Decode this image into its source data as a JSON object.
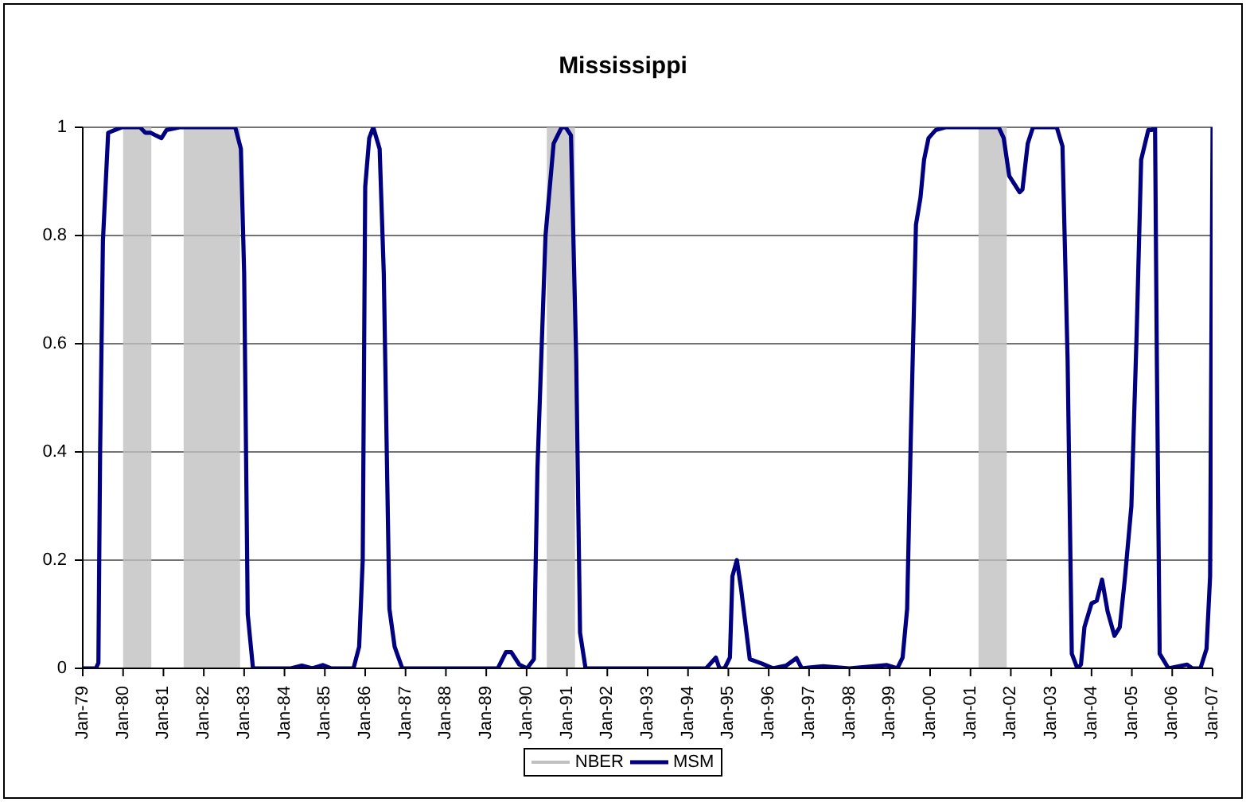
{
  "chart_data": {
    "type": "line",
    "title": "Mississippi",
    "xlim": [
      "1979-01",
      "2007-01"
    ],
    "xticks": [
      {
        "value": "1979-01",
        "label": "Jan-79"
      },
      {
        "value": "1980-01",
        "label": "Jan-80"
      },
      {
        "value": "1981-01",
        "label": "Jan-81"
      },
      {
        "value": "1982-01",
        "label": "Jan-82"
      },
      {
        "value": "1983-01",
        "label": "Jan-83"
      },
      {
        "value": "1984-01",
        "label": "Jan-84"
      },
      {
        "value": "1985-01",
        "label": "Jan-85"
      },
      {
        "value": "1986-01",
        "label": "Jan-86"
      },
      {
        "value": "1987-01",
        "label": "Jan-87"
      },
      {
        "value": "1988-01",
        "label": "Jan-88"
      },
      {
        "value": "1989-01",
        "label": "Jan-89"
      },
      {
        "value": "1990-01",
        "label": "Jan-90"
      },
      {
        "value": "1991-01",
        "label": "Jan-91"
      },
      {
        "value": "1992-01",
        "label": "Jan-92"
      },
      {
        "value": "1993-01",
        "label": "Jan-93"
      },
      {
        "value": "1994-01",
        "label": "Jan-94"
      },
      {
        "value": "1995-01",
        "label": "Jan-95"
      },
      {
        "value": "1996-01",
        "label": "Jan-96"
      },
      {
        "value": "1997-01",
        "label": "Jan-97"
      },
      {
        "value": "1998-01",
        "label": "Jan-98"
      },
      {
        "value": "1999-01",
        "label": "Jan-99"
      },
      {
        "value": "2000-01",
        "label": "Jan-00"
      },
      {
        "value": "2001-01",
        "label": "Jan-01"
      },
      {
        "value": "2002-01",
        "label": "Jan-02"
      },
      {
        "value": "2003-01",
        "label": "Jan-03"
      },
      {
        "value": "2004-01",
        "label": "Jan-04"
      },
      {
        "value": "2005-01",
        "label": "Jan-05"
      },
      {
        "value": "2006-01",
        "label": "Jan-06"
      },
      {
        "value": "2007-01",
        "label": "Jan-07"
      }
    ],
    "ylim": [
      0,
      1
    ],
    "yticks": [
      0,
      0.2,
      0.4,
      0.6,
      0.8,
      1
    ],
    "grid": "y",
    "legend": "bottom",
    "marker": "none",
    "bands": [
      {
        "axis": "x",
        "from": "1980-01-01",
        "to": "1980-09-13",
        "color": "#c0c0c0",
        "label": "NBER"
      },
      {
        "axis": "x",
        "from": "1981-07-01",
        "to": "1982-11-25",
        "color": "#c0c0c0"
      },
      {
        "axis": "x",
        "from": "1990-07-01",
        "to": "1991-03-13",
        "color": "#c0c0c0"
      },
      {
        "axis": "x",
        "from": "2001-03-13",
        "to": "2001-11-25",
        "color": "#c0c0c0"
      }
    ],
    "series": [
      {
        "name": "MSM",
        "color": "#000080",
        "x": [
          "1979-01-01",
          "1979-04-29",
          "1979-05-21",
          "1979-06-06",
          "1979-07-01",
          "1979-08-18",
          "1979-12-17",
          "1980-06-02",
          "1980-07-19",
          "1980-09-06",
          "1980-10-23",
          "1980-12-13",
          "1981-01-29",
          "1981-05-25",
          "1982-10-12",
          "1982-12-02",
          "1983-01-01",
          "1983-02-03",
          "1983-03-20",
          "1984-02-28",
          "1984-06-06",
          "1984-09-09",
          "1984-12-13",
          "1985-02-25",
          "1985-09-17",
          "1985-11-07",
          "1985-12-09",
          "1986-01-01",
          "1986-02-07",
          "1986-03-13",
          "1986-05-10",
          "1986-06-17",
          "1986-08-07",
          "1986-09-24",
          "1986-12-02",
          "1988-10-28",
          "1989-04-15",
          "1989-06-27",
          "1989-08-14",
          "1989-10-26",
          "1990-01-05",
          "1990-03-06",
          "1990-04-08",
          "1990-06-20",
          "1990-09-02",
          "1990-11-14",
          "1990-12-20",
          "1991-02-07",
          "1991-03-24",
          "1991-04-28",
          "1991-06-17",
          "1993-01-01",
          "1994-06-13",
          "1994-09-09",
          "1994-10-12",
          "1994-11-28",
          "1995-01-15",
          "1995-02-07",
          "1995-03-17",
          "1995-04-23",
          "1995-07-12",
          "1995-10-28",
          "1996-02-07",
          "1996-06-06",
          "1996-09-09",
          "1996-10-26",
          "1997-05-07",
          "1998-01-01",
          "1998-12-06",
          "1999-03-09",
          "1999-04-26",
          "1999-06-06",
          "1999-07-08",
          "1999-08-25",
          "1999-10-05",
          "1999-11-07",
          "1999-12-17",
          "2000-02-21",
          "2000-05-18",
          "2001-09-13",
          "2001-10-28",
          "2001-12-17",
          "2002-03-20",
          "2002-04-15",
          "2002-06-02",
          "2002-07-19",
          "2003-02-21",
          "2003-04-12",
          "2003-05-28",
          "2003-07-05",
          "2003-08-25",
          "2003-09-27",
          "2003-10-28",
          "2004-01-01",
          "2004-02-18",
          "2004-04-05",
          "2004-05-25",
          "2004-07-26",
          "2004-09-13",
          "2004-10-28",
          "2004-12-27",
          "2005-02-14",
          "2005-03-24",
          "2005-05-28",
          "2005-06-27",
          "2005-07-28",
          "2005-08-14",
          "2005-09-09",
          "2005-11-28",
          "2006-05-14",
          "2006-07-01",
          "2006-09-13",
          "2006-11-07",
          "2006-12-09",
          "2007-01-01"
        ],
        "values": [
          0,
          0,
          0.01,
          0.4,
          0.79,
          0.99,
          1,
          1,
          0.99,
          0.99,
          0.985,
          0.98,
          0.995,
          1,
          1,
          0.96,
          0.73,
          0.1,
          0,
          0,
          0.005,
          0,
          0.006,
          0,
          0,
          0.04,
          0.2,
          0.89,
          0.98,
          1,
          0.96,
          0.73,
          0.11,
          0.04,
          0,
          0,
          0,
          0.03,
          0.03,
          0.007,
          0,
          0.017,
          0.37,
          0.8,
          0.97,
          1,
          1,
          0.985,
          0.57,
          0.066,
          0,
          0,
          0,
          0.02,
          0,
          0,
          0.02,
          0.17,
          0.2,
          0.15,
          0.017,
          0.009,
          0,
          0.005,
          0.019,
          0,
          0.004,
          0,
          0.006,
          0,
          0.02,
          0.11,
          0.42,
          0.82,
          0.87,
          0.94,
          0.98,
          0.995,
          1,
          1,
          0.98,
          0.91,
          0.88,
          0.885,
          0.97,
          1,
          1,
          0.965,
          0.57,
          0.027,
          0,
          0.007,
          0.076,
          0.12,
          0.125,
          0.164,
          0.105,
          0.06,
          0.076,
          0.164,
          0.3,
          0.62,
          0.94,
          0.995,
          0.995,
          1,
          0.57,
          0.027,
          0,
          0.007,
          0,
          0,
          0.036,
          0.17,
          1
        ]
      }
    ]
  }
}
